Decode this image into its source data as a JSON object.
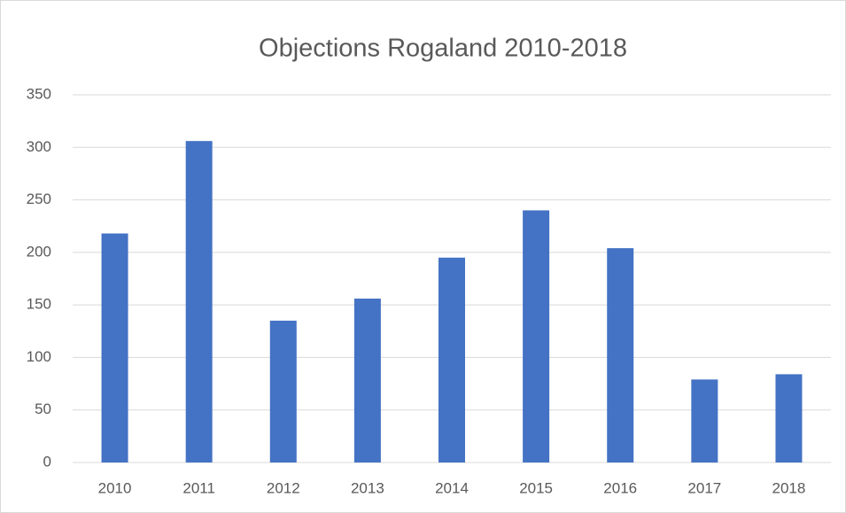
{
  "chart_data": {
    "type": "bar",
    "title": "Objections Rogaland 2010-2018",
    "categories": [
      "2010",
      "2011",
      "2012",
      "2013",
      "2014",
      "2015",
      "2016",
      "2017",
      "2018"
    ],
    "values": [
      218,
      306,
      135,
      156,
      195,
      240,
      204,
      79,
      84
    ],
    "color": "#4472c4",
    "ylim": [
      0,
      350
    ],
    "yticks": [
      0,
      50,
      100,
      150,
      200,
      250,
      300,
      350
    ],
    "grid": true
  }
}
